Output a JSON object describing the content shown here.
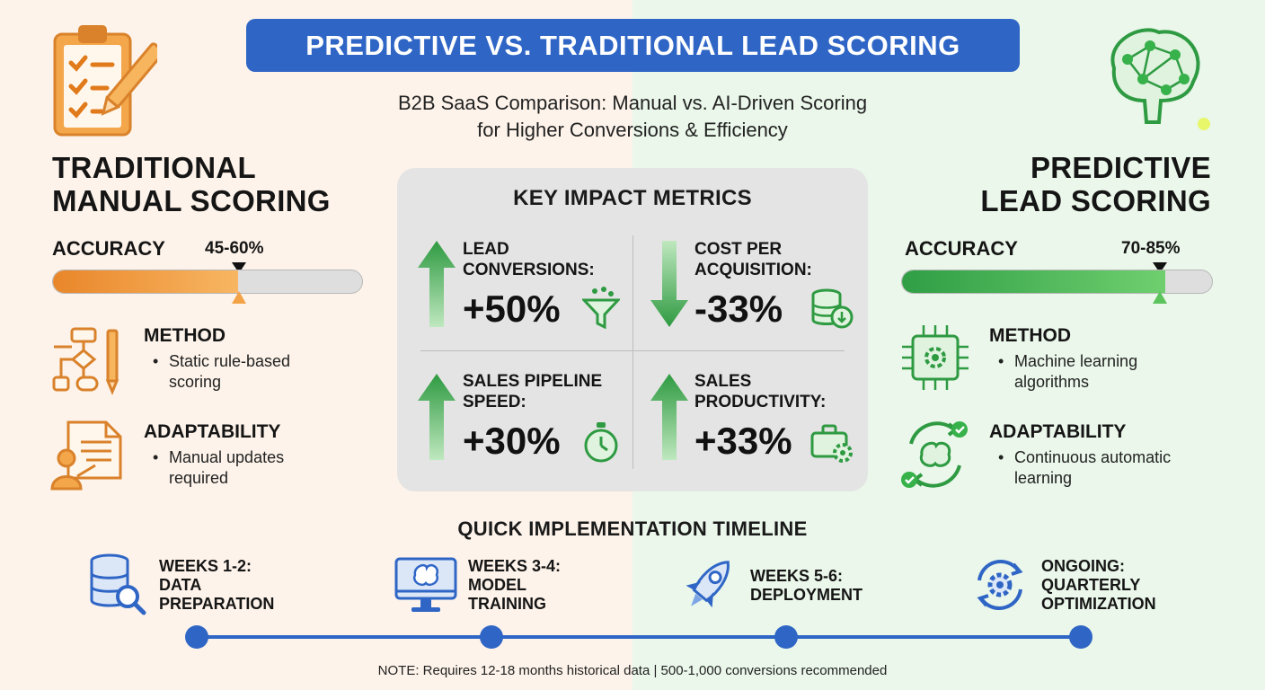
{
  "header": {
    "title": "PREDICTIVE VS. TRADITIONAL LEAD SCORING",
    "subtitle_line1": "B2B SaaS Comparison: Manual vs. AI-Driven Scoring",
    "subtitle_line2": "for Higher Conversions & Efficiency"
  },
  "traditional": {
    "title_line1": "TRADITIONAL",
    "title_line2": "MANUAL SCORING",
    "accuracy_label": "ACCURACY",
    "accuracy_value": "45-60%",
    "accuracy_level": 0.6,
    "method_head": "METHOD",
    "method_line1": "Static rule-based",
    "method_line2": "scoring",
    "adapt_head": "ADAPTABILITY",
    "adapt_line1": "Manual updates",
    "adapt_line2": "required",
    "icons": [
      "clipboard-pencil-icon",
      "flowchart-icon",
      "presenter-document-icon"
    ],
    "accent_color": "#ef9a3c"
  },
  "predictive": {
    "title_line1": "PREDICTIVE",
    "title_line2": "LEAD SCORING",
    "accuracy_label": "ACCURACY",
    "accuracy_value": "70-85%",
    "accuracy_level": 0.85,
    "method_head": "METHOD",
    "method_line1": "Machine learning",
    "method_line2": "algorithms",
    "adapt_head": "ADAPTABILITY",
    "adapt_line1": "Continuous automatic",
    "adapt_line2": "learning",
    "icons": [
      "neural-brain-icon",
      "chip-gear-icon",
      "brain-cycle-icon"
    ],
    "accent_color": "#3fae4f"
  },
  "metrics": {
    "title": "KEY IMPACT METRICS",
    "items": [
      {
        "label_line1": "LEAD",
        "label_line2": "CONVERSIONS:",
        "value": "+50%",
        "direction": "up",
        "icon": "funnel-icon"
      },
      {
        "label_line1": "COST PER",
        "label_line2": "ACQUISITION:",
        "value": "-33%",
        "direction": "down",
        "icon": "coins-down-icon"
      },
      {
        "label_line1": "SALES PIPELINE",
        "label_line2": "SPEED:",
        "value": "+30%",
        "direction": "up",
        "icon": "stopwatch-icon"
      },
      {
        "label_line1": "SALES",
        "label_line2": "PRODUCTIVITY:",
        "value": "+33%",
        "direction": "up",
        "icon": "briefcase-gear-icon"
      }
    ]
  },
  "timeline": {
    "title": "QUICK IMPLEMENTATION TIMELINE",
    "steps": [
      {
        "line1": "WEEKS 1-2:",
        "line2": "DATA",
        "line3": "PREPARATION",
        "icon": "database-search-icon"
      },
      {
        "line1": "WEEKS 3-4:",
        "line2": "MODEL",
        "line3": "TRAINING",
        "icon": "monitor-brain-icon"
      },
      {
        "line1": "WEEKS 5-6:",
        "line2": "DEPLOYMENT",
        "line3": "",
        "icon": "rocket-icon"
      },
      {
        "line1": "ONGOING:",
        "line2": "QUARTERLY",
        "line3": "OPTIMIZATION",
        "icon": "gear-cycle-icon"
      }
    ],
    "line_color": "#2f66c6"
  },
  "note": "NOTE: Requires 12-18 months historical data | 500-1,000 conversions recommended"
}
